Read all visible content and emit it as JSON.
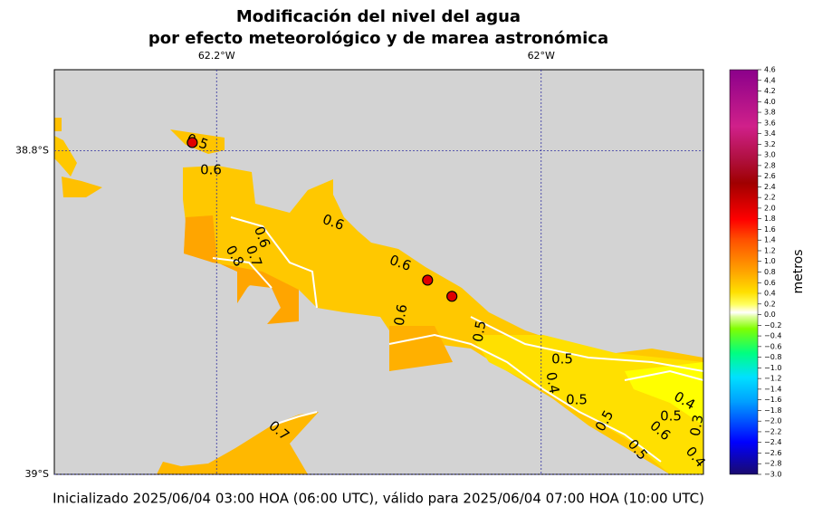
{
  "title_lines": [
    "Modificación del nivel del agua",
    "por efecto meteorológico y de marea astronómica"
  ],
  "map": {
    "xlim": [
      -62.3,
      -61.9
    ],
    "ylim": [
      -39.0,
      -38.75
    ],
    "xticks": [
      {
        "value": -62.2,
        "label": "62.2°W"
      },
      {
        "value": -62,
        "label": "62°W"
      }
    ],
    "yticks": [
      {
        "value": -38.8,
        "label": "38.8°S"
      },
      {
        "value": -39,
        "label": "39°S"
      }
    ],
    "stations": [
      {
        "lon": -62.215,
        "lat": -38.795
      },
      {
        "lon": -62.07,
        "lat": -38.88
      },
      {
        "lon": -62.055,
        "lat": -38.89
      }
    ],
    "contour_labels": [
      0.5,
      0.6,
      0.6,
      0.6,
      0.8,
      0.7,
      0.6,
      0.6,
      0.5,
      0.5,
      0.4,
      0.5,
      0.4,
      0.5,
      0.5,
      0.6,
      0.3,
      0.5,
      0.4,
      0.7
    ]
  },
  "colorbar": {
    "label": "metros",
    "lim": [
      -3.0,
      4.6
    ],
    "ticks": [
      {
        "value": -3.0,
        "label": "−3.0"
      },
      {
        "value": -2.8,
        "label": "−2.8"
      },
      {
        "value": -2.6,
        "label": "−2.6"
      },
      {
        "value": -2.4,
        "label": "−2.4"
      },
      {
        "value": -2.2,
        "label": "−2.2"
      },
      {
        "value": -2.0,
        "label": "−2.0"
      },
      {
        "value": -1.8,
        "label": "−1.8"
      },
      {
        "value": -1.6,
        "label": "−1.6"
      },
      {
        "value": -1.4,
        "label": "−1.4"
      },
      {
        "value": -1.2,
        "label": "−1.2"
      },
      {
        "value": -1.0,
        "label": "−1.0"
      },
      {
        "value": -0.8,
        "label": "−0.8"
      },
      {
        "value": -0.6,
        "label": "−0.6"
      },
      {
        "value": -0.4,
        "label": "−0.4"
      },
      {
        "value": -0.2,
        "label": "−0.2"
      },
      {
        "value": 0,
        "label": "0.0"
      },
      {
        "value": 0.2,
        "label": "0.2"
      },
      {
        "value": 0.4,
        "label": "0.4"
      },
      {
        "value": 0.6,
        "label": "0.6"
      },
      {
        "value": 0.8,
        "label": "0.8"
      },
      {
        "value": 1.0,
        "label": "1.0"
      },
      {
        "value": 1.2,
        "label": "1.2"
      },
      {
        "value": 1.4,
        "label": "1.4"
      },
      {
        "value": 1.6,
        "label": "1.6"
      },
      {
        "value": 1.8,
        "label": "1.8"
      },
      {
        "value": 2.0,
        "label": "2.0"
      },
      {
        "value": 2.2,
        "label": "2.2"
      },
      {
        "value": 2.4,
        "label": "2.4"
      },
      {
        "value": 2.6,
        "label": "2.6"
      },
      {
        "value": 2.8,
        "label": "2.8"
      },
      {
        "value": 3.0,
        "label": "3.0"
      },
      {
        "value": 3.2,
        "label": "3.2"
      },
      {
        "value": 3.4,
        "label": "3.4"
      },
      {
        "value": 3.6,
        "label": "3.6"
      },
      {
        "value": 3.8,
        "label": "3.8"
      },
      {
        "value": 4.0,
        "label": "4.0"
      },
      {
        "value": 4.2,
        "label": "4.2"
      },
      {
        "value": 4.4,
        "label": "4.4"
      },
      {
        "value": 4.6,
        "label": "4.6"
      }
    ]
  },
  "footer": "Inicializado 2025/06/04 03:00 HOA (06:00 UTC), válido para 2025/06/04 07:00 HOA (10:00 UTC)"
}
